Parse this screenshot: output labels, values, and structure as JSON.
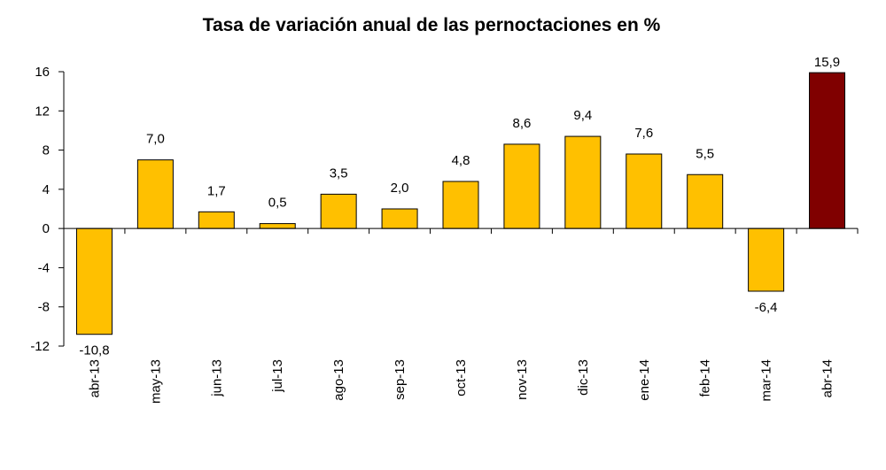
{
  "chart_data": {
    "type": "bar",
    "title": "Tasa de variación anual de las pernoctaciones en %",
    "xlabel": "",
    "ylabel": "",
    "ylim": [
      -12,
      16
    ],
    "yticks": [
      "16",
      "12",
      "8",
      "4",
      "0",
      "-4",
      "-8",
      "-12"
    ],
    "ytick_values": [
      16,
      12,
      8,
      4,
      0,
      -4,
      -8,
      -12
    ],
    "categories": [
      "abr-13",
      "may-13",
      "jun-13",
      "jul-13",
      "ago-13",
      "sep-13",
      "oct-13",
      "nov-13",
      "dic-13",
      "ene-14",
      "feb-14",
      "mar-14",
      "abr-14"
    ],
    "values": [
      -10.8,
      7.0,
      1.7,
      0.5,
      3.5,
      2.0,
      4.8,
      8.6,
      9.4,
      7.6,
      5.5,
      -6.4,
      15.9
    ],
    "data_labels": [
      "-10,8",
      "7,0",
      "1,7",
      "0,5",
      "3,5",
      "2,0",
      "4,8",
      "8,6",
      "9,4",
      "7,6",
      "5,5",
      "-6,4",
      "15,9"
    ],
    "colors": {
      "default": "#ffc000",
      "highlight": "#800000",
      "border": "#000000"
    },
    "highlight_index": 12,
    "grid": false,
    "legend": "none"
  }
}
